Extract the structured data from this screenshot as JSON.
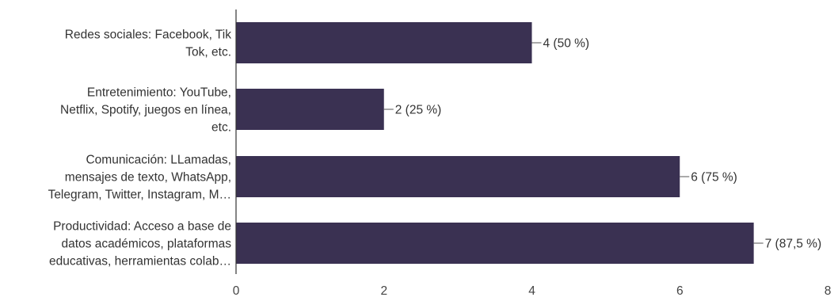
{
  "chart_data": {
    "type": "bar",
    "orientation": "horizontal",
    "categories": [
      [
        "Redes sociales: Facebook, Tik",
        "Tok, etc."
      ],
      [
        "Entretenimiento: YouTube,",
        "Netflix, Spotify, juegos en línea,",
        "etc."
      ],
      [
        "Comunicación: LLamadas,",
        "mensajes de texto, WhatsApp,",
        "Telegram, Twitter, Instagram, M…"
      ],
      [
        "Productividad: Acceso a base de",
        "datos académicos, plataformas",
        "educativas, herramientas colab…"
      ]
    ],
    "values": [
      4,
      2,
      6,
      7
    ],
    "data_labels": [
      "4 (50 %)",
      "2 (25 %)",
      "6 (75 %)",
      "7 (87,5 %)"
    ],
    "xlim": [
      0,
      8
    ],
    "xticks": [
      0,
      2,
      4,
      6,
      8
    ],
    "tick_labels": [
      "0",
      "2",
      "4",
      "6",
      "8"
    ],
    "grid": false,
    "colors": {
      "bar": "#3a3152",
      "axis": "#333333",
      "leader": "#555555"
    }
  }
}
